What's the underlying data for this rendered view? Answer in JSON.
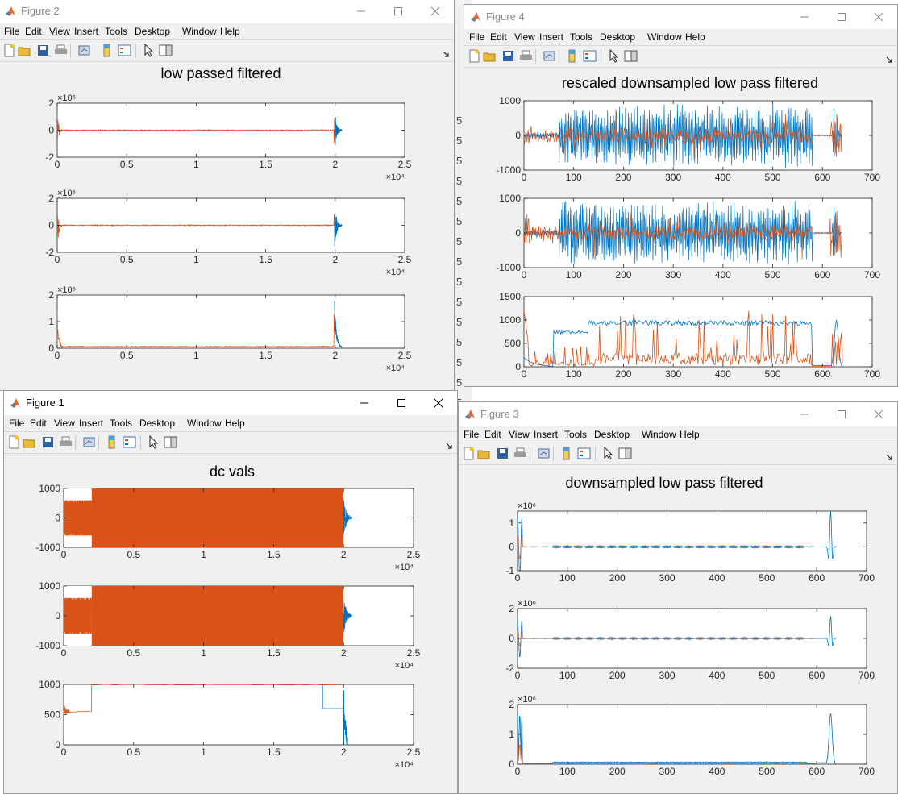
{
  "colors": {
    "series1": "#0072BD",
    "series2": "#D95319",
    "axis": "#262626",
    "figure_bg": "#f0f0f0"
  },
  "menu": [
    "File",
    "Edit",
    "View",
    "Insert",
    "Tools",
    "Desktop",
    "Window",
    "Help"
  ],
  "background": {
    "fragments": [
      "5",
      "5",
      "5",
      "5",
      "5",
      "5",
      "5",
      "5",
      "5",
      "5",
      "5",
      "5",
      "5",
      "5",
      "5"
    ]
  },
  "figures": [
    {
      "title": "Figure 2",
      "active": false,
      "chart_data": {
        "type": "line",
        "title": "low passed filtered",
        "subplots": [
          {
            "xlim": [
              0,
              25000
            ],
            "ylim": [
              -2000000,
              2000000
            ],
            "xticks": [
              "0",
              "0.5",
              "1",
              "1.5",
              "2",
              "2.5"
            ],
            "yticks": [
              "-2",
              "0",
              "2"
            ],
            "y_exponent": "×10⁶",
            "x_exponent": "×10⁴"
          },
          {
            "xlim": [
              0,
              25000
            ],
            "ylim": [
              -2000000,
              2000000
            ],
            "xticks": [
              "0",
              "0.5",
              "1",
              "1.5",
              "2",
              "2.5"
            ],
            "yticks": [
              "-2",
              "0",
              "2"
            ],
            "y_exponent": "×10⁶",
            "x_exponent": "×10⁴"
          },
          {
            "xlim": [
              0,
              25000
            ],
            "ylim": [
              0,
              2000000
            ],
            "xticks": [
              "0",
              "0.5",
              "1",
              "1.5",
              "2",
              "2.5"
            ],
            "yticks": [
              "0",
              "1",
              "2"
            ],
            "y_exponent": "×10⁶",
            "x_exponent": "×10⁴"
          }
        ]
      }
    },
    {
      "title": "Figure 4",
      "active": false,
      "chart_data": {
        "type": "line",
        "title": "rescaled downsampled low pass filtered",
        "subplots": [
          {
            "xlim": [
              0,
              700
            ],
            "ylim": [
              -1000,
              1000
            ],
            "xticks": [
              "0",
              "100",
              "200",
              "300",
              "400",
              "500",
              "600",
              "700"
            ],
            "yticks": [
              "-1000",
              "0",
              "1000"
            ]
          },
          {
            "xlim": [
              0,
              700
            ],
            "ylim": [
              -1000,
              1000
            ],
            "xticks": [
              "0",
              "100",
              "200",
              "300",
              "400",
              "500",
              "600",
              "700"
            ],
            "yticks": [
              "-1000",
              "0",
              "1000"
            ]
          },
          {
            "xlim": [
              0,
              700
            ],
            "ylim": [
              0,
              1500
            ],
            "xticks": [
              "0",
              "100",
              "200",
              "300",
              "400",
              "500",
              "600",
              "700"
            ],
            "yticks": [
              "0",
              "500",
              "1000",
              "1500"
            ]
          }
        ]
      }
    },
    {
      "title": "Figure 1",
      "active": true,
      "chart_data": {
        "type": "line",
        "title": "dc vals",
        "subplots": [
          {
            "xlim": [
              0,
              25000
            ],
            "ylim": [
              -1000,
              1000
            ],
            "xticks": [
              "0",
              "0.5",
              "1",
              "1.5",
              "2",
              "2.5"
            ],
            "yticks": [
              "-1000",
              "0",
              "1000"
            ],
            "x_exponent": "×10⁴"
          },
          {
            "xlim": [
              0,
              25000
            ],
            "ylim": [
              -1000,
              1000
            ],
            "xticks": [
              "0",
              "0.5",
              "1",
              "1.5",
              "2",
              "2.5"
            ],
            "yticks": [
              "-1000",
              "0",
              "1000"
            ],
            "x_exponent": "×10⁴"
          },
          {
            "xlim": [
              0,
              25000
            ],
            "ylim": [
              0,
              1000
            ],
            "xticks": [
              "0",
              "0.5",
              "1",
              "1.5",
              "2",
              "2.5"
            ],
            "yticks": [
              "0",
              "500",
              "1000"
            ],
            "x_exponent": "×10⁴"
          }
        ]
      }
    },
    {
      "title": "Figure 3",
      "active": false,
      "chart_data": {
        "type": "line",
        "title": "downsampled low pass filtered",
        "subplots": [
          {
            "xlim": [
              0,
              700
            ],
            "ylim": [
              -1000000,
              1500000
            ],
            "xticks": [
              "0",
              "100",
              "200",
              "300",
              "400",
              "500",
              "600",
              "700"
            ],
            "yticks": [
              "-1",
              "0",
              "1"
            ],
            "y_exponent": "×10⁶"
          },
          {
            "xlim": [
              0,
              700
            ],
            "ylim": [
              -2000000,
              2000000
            ],
            "xticks": [
              "0",
              "100",
              "200",
              "300",
              "400",
              "500",
              "600",
              "700"
            ],
            "yticks": [
              "-2",
              "0",
              "2"
            ],
            "y_exponent": "×10⁶"
          },
          {
            "xlim": [
              0,
              700
            ],
            "ylim": [
              0,
              2000000
            ],
            "xticks": [
              "0",
              "100",
              "200",
              "300",
              "400",
              "500",
              "600",
              "700"
            ],
            "yticks": [
              "0",
              "1",
              "2"
            ],
            "y_exponent": "×10⁶"
          }
        ]
      }
    }
  ]
}
